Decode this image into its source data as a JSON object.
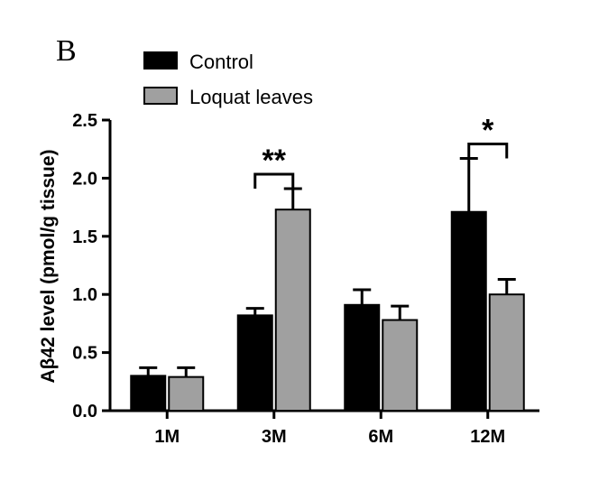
{
  "panel_label": "B",
  "chart_data": {
    "type": "bar",
    "title": "",
    "xlabel": "",
    "ylabel": "Aβ42 level (pmol/g tissue)",
    "ylim": [
      0,
      2.5
    ],
    "yticks": [
      "0.0",
      "0.5",
      "1.0",
      "1.5",
      "2.0",
      "2.5"
    ],
    "categories": [
      "1M",
      "3M",
      "6M",
      "12M"
    ],
    "series": [
      {
        "name": "Control",
        "color": "#000000",
        "values": [
          0.3,
          0.82,
          0.91,
          1.71
        ],
        "errors": [
          0.07,
          0.06,
          0.13,
          0.46
        ]
      },
      {
        "name": "Loquat leaves",
        "color": "#a0a0a0",
        "values": [
          0.29,
          1.73,
          0.78,
          1.0
        ],
        "errors": [
          0.08,
          0.18,
          0.12,
          0.13
        ]
      }
    ],
    "significance": [
      {
        "category": "3M",
        "label": "**"
      },
      {
        "category": "12M",
        "label": "*"
      }
    ],
    "legend_position": "top-left"
  }
}
